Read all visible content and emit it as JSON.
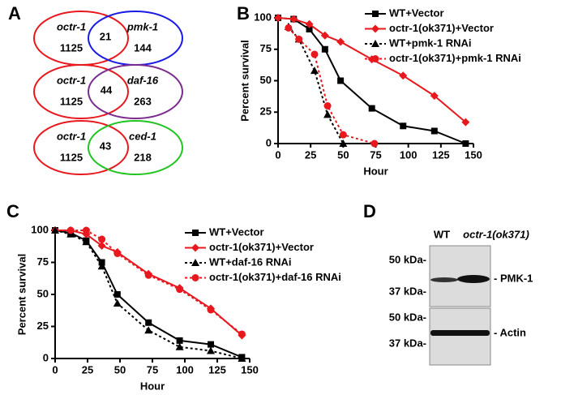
{
  "panel_labels": [
    "A",
    "B",
    "C",
    "D"
  ],
  "venn": [
    {
      "left": "octr-1",
      "left_count": "1125",
      "overlap": "21",
      "right": "pmk-1",
      "right_count": "144"
    },
    {
      "left": "octr-1",
      "left_count": "1125",
      "overlap": "44",
      "right": "daf-16",
      "right_count": "263"
    },
    {
      "left": "octr-1",
      "left_count": "1125",
      "overlap": "43",
      "right": "ced-1",
      "right_count": "218"
    }
  ],
  "blot": {
    "lanes": [
      "WT",
      "octr-1(ok371)"
    ],
    "markers": [
      "50 kDa-",
      "37 kDa-",
      "50 kDa-",
      "37 kDa-"
    ],
    "bands": [
      "- PMK-1",
      "- Actin"
    ]
  },
  "chart_data": [
    {
      "type": "line",
      "ylabel": "Percent survival",
      "xlabel": "Hour",
      "xlim": [
        0,
        150
      ],
      "ylim": [
        0,
        100
      ],
      "xticks": [
        0,
        25,
        50,
        75,
        100,
        125,
        150
      ],
      "yticks": [
        0,
        25,
        50,
        75,
        100
      ],
      "series": [
        {
          "name": "WT+Vector",
          "color": "#000000",
          "marker": "square",
          "dash": false,
          "x": [
            0,
            12,
            24,
            36,
            48,
            72,
            96,
            120,
            144
          ],
          "values": [
            100,
            99,
            91,
            75,
            50,
            28,
            14,
            10,
            0
          ]
        },
        {
          "name": "octr-1(ok371)+Vector",
          "color": "#e8191e",
          "marker": "diamond",
          "dash": false,
          "x": [
            0,
            12,
            24,
            36,
            48,
            72,
            96,
            120,
            144
          ],
          "values": [
            100,
            99,
            95,
            86,
            81,
            67,
            54,
            38,
            17
          ]
        },
        {
          "name": "WT+pmk-1 RNAi",
          "color": "#000000",
          "marker": "triangle",
          "dash": true,
          "x": [
            8,
            16,
            28,
            38,
            50
          ],
          "values": [
            93,
            83,
            58,
            23,
            0
          ]
        },
        {
          "name": "octr-1(ok371)+pmk-1 RNAi",
          "color": "#e8191e",
          "marker": "circle",
          "dash": true,
          "x": [
            8,
            16,
            28,
            38,
            50,
            74
          ],
          "values": [
            92,
            83,
            71,
            30,
            7,
            0
          ]
        }
      ]
    },
    {
      "type": "line",
      "ylabel": "Percent survival",
      "xlabel": "Hour",
      "xlim": [
        0,
        150
      ],
      "ylim": [
        0,
        100
      ],
      "xticks": [
        0,
        25,
        50,
        75,
        100,
        125,
        150
      ],
      "yticks": [
        0,
        25,
        50,
        75,
        100
      ],
      "series": [
        {
          "name": "WT+Vector",
          "color": "#000000",
          "marker": "square",
          "dash": false,
          "x": [
            0,
            12,
            24,
            36,
            48,
            72,
            96,
            120,
            144
          ],
          "values": [
            100,
            98,
            92,
            75,
            50,
            28,
            14,
            11,
            1
          ]
        },
        {
          "name": "octr-1(ok371)+Vector",
          "color": "#e8191e",
          "marker": "diamond",
          "dash": false,
          "x": [
            0,
            12,
            24,
            36,
            48,
            72,
            96,
            120,
            144
          ],
          "values": [
            100,
            100,
            97,
            88,
            83,
            66,
            55,
            39,
            18
          ]
        },
        {
          "name": "WT+daf-16 RNAi",
          "color": "#000000",
          "marker": "triangle",
          "dash": true,
          "x": [
            0,
            12,
            24,
            36,
            48,
            72,
            96,
            120,
            144
          ],
          "values": [
            100,
            97,
            91,
            72,
            43,
            22,
            9,
            6,
            0
          ]
        },
        {
          "name": "octr-1(ok371)+daf-16 RNAi",
          "color": "#e8191e",
          "marker": "circle",
          "dash": true,
          "x": [
            12,
            24,
            36,
            48,
            72,
            96,
            120,
            144
          ],
          "values": [
            100,
            100,
            93,
            82,
            65,
            54,
            38,
            19
          ]
        }
      ]
    }
  ]
}
